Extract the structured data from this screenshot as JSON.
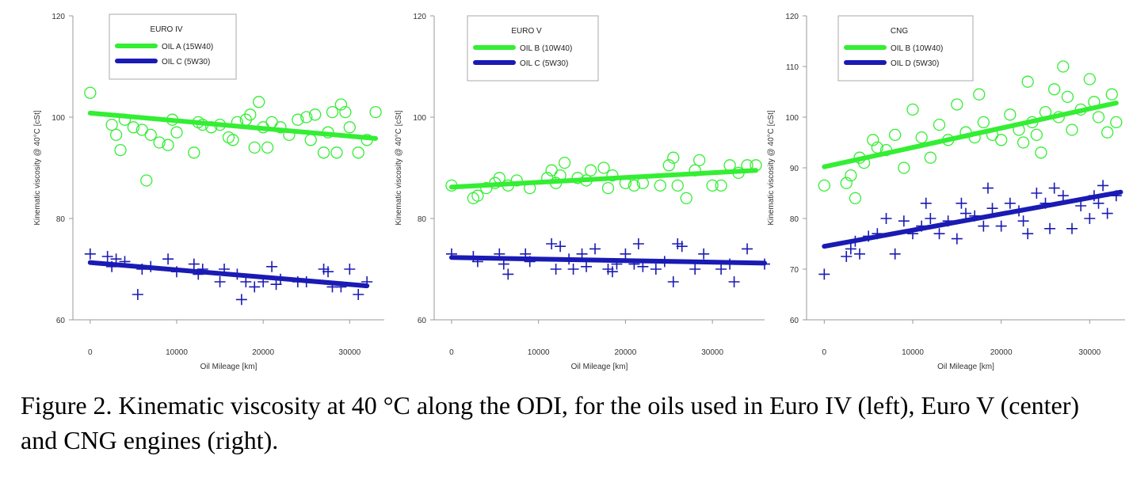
{
  "caption": "Figure 2. Kinematic viscosity at 40 °C along the ODI, for the oils used in Euro IV (left), Euro V (center) and CNG engines (right).",
  "colors": {
    "green": "#33ee33",
    "blue": "#1a1ab4"
  },
  "chart_data": [
    {
      "type": "scatter",
      "title": "EURO IV",
      "xlabel": "Oil Mileage [km]",
      "ylabel": "Kinematic viscosity @ 40°C [cSt]",
      "xlim": [
        -2000,
        34000
      ],
      "ylim": [
        60,
        120
      ],
      "xticks": [
        0,
        10000,
        20000,
        30000
      ],
      "yticks": [
        60,
        80,
        100,
        120
      ],
      "legend_position": "top-left",
      "series": [
        {
          "name": "OIL A (15W40)",
          "color": "green",
          "marker": "circle",
          "trend": [
            [
              0,
              100.8
            ],
            [
              33000,
              95.8
            ]
          ],
          "x": [
            0,
            2500,
            3000,
            3500,
            4000,
            5000,
            6000,
            6500,
            7000,
            8000,
            9000,
            9500,
            10000,
            12000,
            12500,
            13000,
            14000,
            15000,
            16000,
            16500,
            17000,
            18000,
            18500,
            19000,
            19500,
            20000,
            20500,
            21000,
            22000,
            23000,
            24000,
            25000,
            25500,
            26000,
            27000,
            27500,
            28000,
            28500,
            29000,
            29500,
            30000,
            31000,
            32000,
            33000
          ],
          "y": [
            104.8,
            98.5,
            96.5,
            93.5,
            99.5,
            98.0,
            97.5,
            87.5,
            96.5,
            95.0,
            94.5,
            99.5,
            97.0,
            93.0,
            99.0,
            98.5,
            98.0,
            98.5,
            96.0,
            95.5,
            99.0,
            99.5,
            100.5,
            94.0,
            103.0,
            98.0,
            94.0,
            99.0,
            98.0,
            96.5,
            99.5,
            100.0,
            95.5,
            100.5,
            93.0,
            97.0,
            101.0,
            93.0,
            102.5,
            101.0,
            98.0,
            93.0,
            95.5,
            101.0
          ]
        },
        {
          "name": "OIL C (5W30)",
          "color": "blue",
          "marker": "plus",
          "trend": [
            [
              0,
              71.3
            ],
            [
              32000,
              66.7
            ]
          ],
          "x": [
            0,
            2000,
            2500,
            3000,
            4000,
            5500,
            6000,
            7000,
            9000,
            10000,
            12000,
            12500,
            13000,
            15000,
            15500,
            17000,
            17500,
            18000,
            19000,
            20000,
            21000,
            21500,
            22000,
            24000,
            25000,
            27000,
            27500,
            28000,
            29000,
            30000,
            31000,
            32000
          ],
          "y": [
            73.0,
            72.5,
            70.5,
            72.0,
            71.5,
            65.0,
            70.0,
            70.5,
            72.0,
            69.5,
            71.0,
            69.0,
            70.0,
            67.5,
            70.0,
            69.0,
            64.0,
            67.5,
            66.5,
            67.5,
            70.5,
            67.0,
            68.0,
            67.5,
            67.5,
            70.0,
            69.5,
            66.5,
            66.5,
            70.0,
            65.0,
            67.5
          ]
        }
      ]
    },
    {
      "type": "scatter",
      "title": "EURO V",
      "xlabel": "Oil Mileage [km]",
      "ylabel": "Kinematic viscosity @ 40°C [cSt]",
      "xlim": [
        -2000,
        36000
      ],
      "ylim": [
        60,
        120
      ],
      "xticks": [
        0,
        10000,
        20000,
        30000
      ],
      "yticks": [
        60,
        80,
        100,
        120
      ],
      "legend_position": "top-left",
      "series": [
        {
          "name": "OIL B (10W40)",
          "color": "green",
          "marker": "circle",
          "trend": [
            [
              0,
              86.2
            ],
            [
              35000,
              89.5
            ]
          ],
          "x": [
            0,
            2500,
            3000,
            4000,
            5000,
            5500,
            6500,
            7500,
            9000,
            11000,
            11500,
            12000,
            12500,
            13000,
            14500,
            15500,
            16000,
            17500,
            18000,
            18500,
            20000,
            21000,
            22000,
            24000,
            25000,
            25500,
            26000,
            27000,
            28000,
            28500,
            30000,
            31000,
            32000,
            33000,
            34000,
            35000
          ],
          "y": [
            86.5,
            84.0,
            84.5,
            86.0,
            87.0,
            88.0,
            86.5,
            87.5,
            86.0,
            88.0,
            89.5,
            87.0,
            88.5,
            91.0,
            88.0,
            87.5,
            89.5,
            90.0,
            86.0,
            88.5,
            87.0,
            86.5,
            87.0,
            86.5,
            90.5,
            92.0,
            86.5,
            84.0,
            89.5,
            91.5,
            86.5,
            86.5,
            90.5,
            89.0,
            90.5,
            90.5
          ]
        },
        {
          "name": "OIL C (5W30)",
          "color": "blue",
          "marker": "plus",
          "trend": [
            [
              0,
              72.3
            ],
            [
              36000,
              71.2
            ]
          ],
          "x": [
            0,
            2500,
            3000,
            5500,
            6000,
            6500,
            8500,
            9000,
            11500,
            12000,
            12500,
            13500,
            14000,
            15000,
            15500,
            16500,
            18000,
            18500,
            19000,
            20000,
            21000,
            21500,
            22000,
            23500,
            24500,
            25500,
            26000,
            26500,
            28000,
            29000,
            31000,
            32000,
            32500,
            34000,
            36000
          ],
          "y": [
            73.0,
            72.5,
            71.5,
            73.0,
            71.0,
            69.0,
            73.0,
            71.5,
            75.0,
            70.0,
            74.5,
            72.0,
            70.0,
            73.0,
            70.5,
            74.0,
            70.0,
            69.5,
            71.0,
            73.0,
            71.0,
            75.0,
            70.5,
            70.0,
            71.5,
            67.5,
            75.0,
            74.5,
            70.0,
            73.0,
            70.0,
            71.0,
            67.5,
            74.0,
            71.0
          ]
        }
      ]
    },
    {
      "type": "scatter",
      "title": "CNG",
      "xlabel": "Oil Mileage [km]",
      "ylabel": "Kinematic viscosity @ 40°C [cSt]",
      "xlim": [
        -2000,
        34000
      ],
      "ylim": [
        60,
        120
      ],
      "xticks": [
        0,
        10000,
        20000,
        30000
      ],
      "yticks": [
        60,
        70,
        80,
        90,
        100,
        110,
        120
      ],
      "legend_position": "top-left",
      "series": [
        {
          "name": "OIL B (10W40)",
          "color": "green",
          "marker": "circle",
          "trend": [
            [
              0,
              90.2
            ],
            [
              33000,
              102.8
            ]
          ],
          "x": [
            0,
            2500,
            3000,
            3500,
            4000,
            4500,
            5500,
            6000,
            7000,
            8000,
            9000,
            10000,
            11000,
            12000,
            13000,
            14000,
            15000,
            16000,
            17000,
            17500,
            18000,
            19000,
            20000,
            21000,
            22000,
            22500,
            23000,
            23500,
            24000,
            24500,
            25000,
            26000,
            26500,
            27000,
            27500,
            28000,
            29000,
            30000,
            30500,
            31000,
            32000,
            32500,
            33000
          ],
          "y": [
            86.5,
            87.0,
            88.5,
            84.0,
            92.0,
            91.0,
            95.5,
            94.0,
            93.5,
            96.5,
            90.0,
            101.5,
            96.0,
            92.0,
            98.5,
            95.5,
            102.5,
            97.0,
            96.0,
            104.5,
            99.0,
            96.5,
            95.5,
            100.5,
            97.5,
            95.0,
            107.0,
            99.0,
            96.5,
            93.0,
            101.0,
            105.5,
            100.0,
            110.0,
            104.0,
            97.5,
            101.5,
            107.5,
            103.0,
            100.0,
            97.0,
            104.5,
            99.0
          ]
        },
        {
          "name": "OIL D (5W30)",
          "color": "blue",
          "marker": "plus",
          "trend": [
            [
              0,
              74.5
            ],
            [
              33500,
              85.2
            ]
          ],
          "x": [
            0,
            2500,
            3000,
            3500,
            4000,
            5000,
            6000,
            7000,
            8000,
            9000,
            10000,
            11000,
            11500,
            12000,
            13000,
            14000,
            15000,
            15500,
            16000,
            17000,
            18000,
            18500,
            19000,
            20000,
            21000,
            22000,
            22500,
            23000,
            24000,
            25000,
            25500,
            26000,
            27000,
            28000,
            29000,
            30000,
            30500,
            31000,
            31500,
            32000,
            33000
          ],
          "y": [
            69.0,
            72.5,
            74.0,
            75.5,
            73.0,
            76.5,
            77.0,
            80.0,
            73.0,
            79.5,
            77.0,
            78.5,
            83.0,
            80.0,
            77.0,
            79.5,
            76.0,
            83.0,
            81.0,
            80.5,
            78.5,
            86.0,
            82.0,
            78.5,
            83.0,
            81.5,
            79.5,
            77.0,
            85.0,
            83.0,
            78.0,
            86.0,
            84.5,
            78.0,
            82.5,
            80.0,
            84.5,
            83.0,
            86.5,
            81.0,
            84.5
          ]
        }
      ]
    }
  ]
}
